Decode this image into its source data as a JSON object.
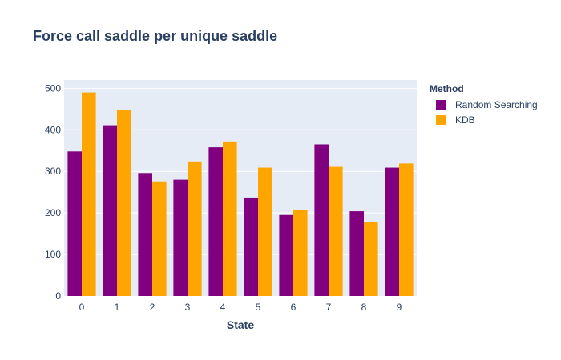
{
  "chart_data": {
    "type": "bar",
    "title": "Force call saddle per unique saddle",
    "xlabel": "State",
    "ylabel": "",
    "categories": [
      "0",
      "1",
      "2",
      "3",
      "4",
      "5",
      "6",
      "7",
      "8",
      "9"
    ],
    "ylim": [
      0,
      520
    ],
    "yticks": [
      0,
      100,
      200,
      300,
      400,
      500
    ],
    "grid": true,
    "legend": {
      "title": "Method",
      "placement": "top-right"
    },
    "series": [
      {
        "name": "Random Searching",
        "color": "#800080",
        "values": [
          348,
          411,
          296,
          280,
          358,
          237,
          195,
          365,
          204,
          309
        ]
      },
      {
        "name": "KDB",
        "color": "#FFA500",
        "values": [
          490,
          447,
          276,
          324,
          372,
          309,
          207,
          311,
          179,
          319
        ]
      }
    ],
    "plot_background": "#E5ECF6",
    "gridline_color": "#ffffff",
    "text_color": "#2a3f5f"
  }
}
